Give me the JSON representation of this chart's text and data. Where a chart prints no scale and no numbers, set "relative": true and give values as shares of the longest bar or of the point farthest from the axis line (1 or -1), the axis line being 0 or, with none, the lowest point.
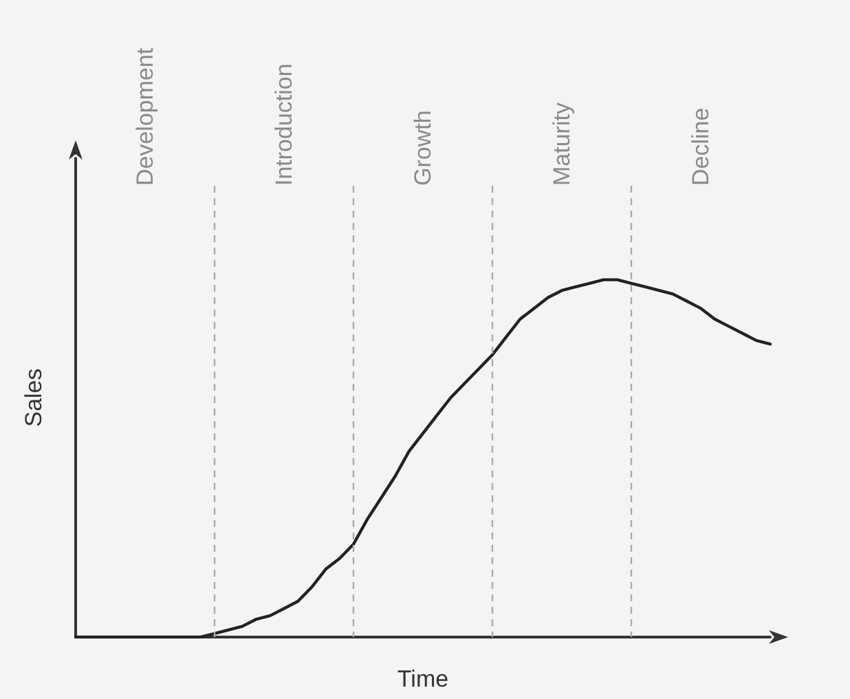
{
  "chart_data": {
    "type": "line",
    "relative": true,
    "xlabel": "Time",
    "ylabel": "Sales",
    "grid": "x",
    "marker": "none",
    "line_style": "solid",
    "categories": [
      null,
      null,
      null,
      null,
      null,
      null,
      null,
      null,
      null,
      null,
      null,
      null,
      null,
      null,
      null,
      null,
      null,
      null,
      null,
      null,
      null,
      null,
      null,
      null,
      null,
      null,
      null,
      null,
      null,
      null,
      null,
      null,
      null,
      null,
      null,
      null,
      null,
      null,
      null,
      null,
      null,
      null,
      null,
      null,
      null,
      null,
      null,
      null,
      null,
      null,
      null
    ],
    "series": [
      {
        "color": "#222222",
        "values": [
          0,
          0,
          0,
          0,
          0,
          0,
          0,
          0,
          0,
          0,
          0.01,
          0.02,
          0.03,
          0.05,
          0.06,
          0.08,
          0.1,
          0.14,
          0.19,
          0.22,
          0.26,
          0.33,
          0.39,
          0.45,
          0.52,
          0.57,
          0.62,
          0.67,
          0.71,
          0.75,
          0.79,
          0.84,
          0.89,
          0.92,
          0.95,
          0.97,
          0.98,
          0.99,
          1.0,
          1.0,
          0.99,
          0.98,
          0.97,
          0.96,
          0.94,
          0.92,
          0.89,
          0.87,
          0.85,
          0.83,
          0.82
        ]
      }
    ],
    "annotations": [
      "Development",
      "Introduction",
      "Growth",
      "Maturity",
      "Decline"
    ]
  }
}
